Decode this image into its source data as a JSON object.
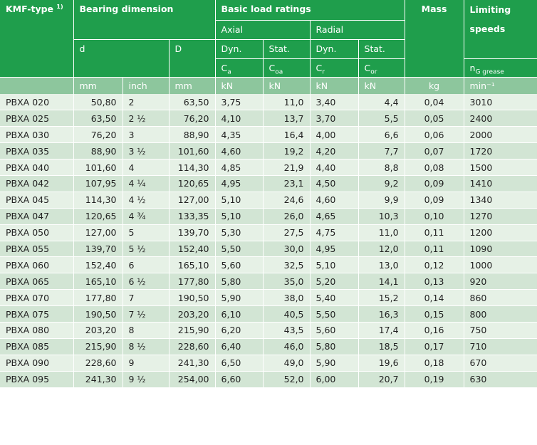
{
  "header": {
    "type_label": "KMF-type",
    "type_note": "1)",
    "bearing_dimension": "Bearing dimension",
    "basic_load": "Basic load ratings",
    "mass": "Mass",
    "limiting_1": "Limiting",
    "limiting_2": "speeds",
    "axial": "Axial",
    "radial": "Radial",
    "d": "d",
    "D": "D",
    "dyn": "Dyn.",
    "stat": "Stat.",
    "ca": "C",
    "ca_sub": "a",
    "coa": "C",
    "coa_sub": "oa",
    "cr": "C",
    "cr_sub": "r",
    "cor": "C",
    "cor_sub": "or",
    "ng": "n",
    "ng_sub": "G grease"
  },
  "units": [
    "mm",
    "inch",
    "mm",
    "kN",
    "kN",
    "kN",
    "kN",
    "kg",
    "min⁻¹"
  ],
  "rows": [
    [
      "PBXA  020",
      "50,80",
      "2",
      "63,50",
      "3,75",
      "11,0",
      "3,40",
      "4,4",
      "0,04",
      "3010"
    ],
    [
      "PBXA  025",
      "63,50",
      "2 ½",
      "76,20",
      "4,10",
      "13,7",
      "3,70",
      "5,5",
      "0,05",
      "2400"
    ],
    [
      "PBXA  030",
      "76,20",
      "3",
      "88,90",
      "4,35",
      "16,4",
      "4,00",
      "6,6",
      "0,06",
      "2000"
    ],
    [
      "PBXA  035",
      "88,90",
      "3 ½",
      "101,60",
      "4,60",
      "19,2",
      "4,20",
      "7,7",
      "0,07",
      "1720"
    ],
    [
      "PBXA  040",
      "101,60",
      "4",
      "114,30",
      "4,85",
      "21,9",
      "4,40",
      "8,8",
      "0,08",
      "1500"
    ],
    [
      "PBXA  042",
      "107,95",
      "4 ¼",
      "120,65",
      "4,95",
      "23,1",
      "4,50",
      "9,2",
      "0,09",
      "1410"
    ],
    [
      "PBXA  045",
      "114,30",
      "4 ½",
      "127,00",
      "5,10",
      "24,6",
      "4,60",
      "9,9",
      "0,09",
      "1340"
    ],
    [
      "PBXA  047",
      "120,65",
      "4 ¾",
      "133,35",
      "5,10",
      "26,0",
      "4,65",
      "10,3",
      "0,10",
      "1270"
    ],
    [
      "PBXA  050",
      "127,00",
      "5",
      "139,70",
      "5,30",
      "27,5",
      "4,75",
      "11,0",
      "0,11",
      "1200"
    ],
    [
      "PBXA  055",
      "139,70",
      "5 ½",
      "152,40",
      "5,50",
      "30,0",
      "4,95",
      "12,0",
      "0,11",
      "1090"
    ],
    [
      "PBXA  060",
      "152,40",
      "6",
      "165,10",
      "5,60",
      "32,5",
      "5,10",
      "13,0",
      "0,12",
      "1000"
    ],
    [
      "PBXA  065",
      "165,10",
      "6 ½",
      "177,80",
      "5,80",
      "35,0",
      "5,20",
      "14,1",
      "0,13",
      "920"
    ],
    [
      "PBXA  070",
      "177,80",
      "7",
      "190,50",
      "5,90",
      "38,0",
      "5,40",
      "15,2",
      "0,14",
      "860"
    ],
    [
      "PBXA  075",
      "190,50",
      "7 ½",
      "203,20",
      "6,10",
      "40,5",
      "5,50",
      "16,3",
      "0,15",
      "800"
    ],
    [
      "PBXA  080",
      "203,20",
      "8",
      "215,90",
      "6,20",
      "43,5",
      "5,60",
      "17,4",
      "0,16",
      "750"
    ],
    [
      "PBXA  085",
      "215,90",
      "8 ½",
      "228,60",
      "6,40",
      "46,0",
      "5,80",
      "18,5",
      "0,17",
      "710"
    ],
    [
      "PBXA  090",
      "228,60",
      "9",
      "241,30",
      "6,50",
      "49,0",
      "5,90",
      "19,6",
      "0,18",
      "670"
    ],
    [
      "PBXA  095",
      "241,30",
      "9 ½",
      "254,00",
      "6,60",
      "52,0",
      "6,00",
      "20,7",
      "0,19",
      "630"
    ]
  ]
}
